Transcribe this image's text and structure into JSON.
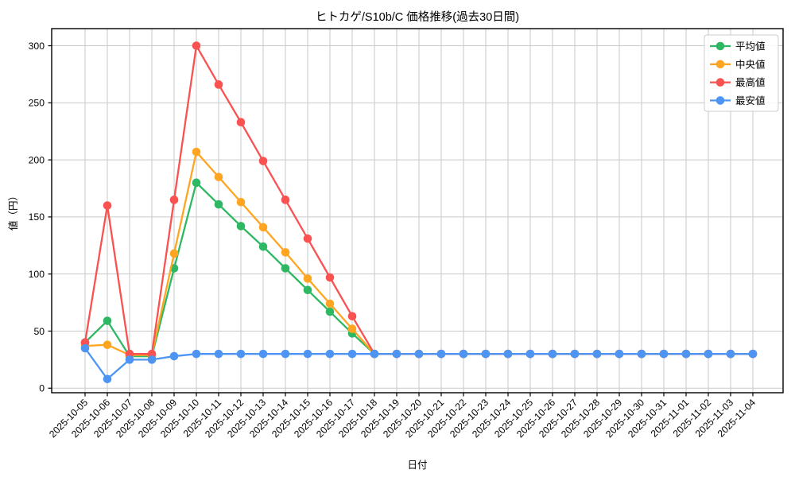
{
  "chart_data": {
    "type": "line",
    "title": "ヒトカゲ/S10b/C 価格推移(過去30日間)",
    "xlabel": "日付",
    "ylabel": "値（円）",
    "x": [
      "2025-10-05",
      "2025-10-06",
      "2025-10-07",
      "2025-10-08",
      "2025-10-09",
      "2025-10-10",
      "2025-10-11",
      "2025-10-12",
      "2025-10-13",
      "2025-10-14",
      "2025-10-15",
      "2025-10-16",
      "2025-10-17",
      "2025-10-18",
      "2025-10-19",
      "2025-10-20",
      "2025-10-21",
      "2025-10-22",
      "2025-10-23",
      "2025-10-24",
      "2025-10-25",
      "2025-10-26",
      "2025-10-27",
      "2025-10-28",
      "2025-10-29",
      "2025-10-30",
      "2025-10-31",
      "2025-11-01",
      "2025-11-02",
      "2025-11-03",
      "2025-11-04"
    ],
    "series": [
      {
        "name": "平均値",
        "color": "#2eb863",
        "values": [
          40,
          59,
          28,
          28,
          105,
          180,
          161,
          142,
          124,
          105,
          86,
          67,
          48,
          30,
          30,
          30,
          30,
          30,
          30,
          30,
          30,
          30,
          30,
          30,
          30,
          30,
          30,
          30,
          30,
          30,
          30
        ]
      },
      {
        "name": "中央値",
        "color": "#ffa522",
        "values": [
          37,
          38,
          29,
          29,
          118,
          207,
          185,
          163,
          141,
          119,
          96,
          74,
          52,
          30,
          30,
          30,
          30,
          30,
          30,
          30,
          30,
          30,
          30,
          30,
          30,
          30,
          30,
          30,
          30,
          30,
          30
        ]
      },
      {
        "name": "最高値",
        "color": "#fa5151",
        "values": [
          40,
          160,
          30,
          30,
          165,
          300,
          266,
          233,
          199,
          165,
          131,
          97,
          63,
          30,
          30,
          30,
          30,
          30,
          30,
          30,
          30,
          30,
          30,
          30,
          30,
          30,
          30,
          30,
          30,
          30,
          30
        ]
      },
      {
        "name": "最安値",
        "color": "#4e94f3",
        "values": [
          35,
          8,
          25,
          25,
          28,
          30,
          30,
          30,
          30,
          30,
          30,
          30,
          30,
          30,
          30,
          30,
          30,
          30,
          30,
          30,
          30,
          30,
          30,
          30,
          30,
          30,
          30,
          30,
          30,
          30,
          30
        ]
      }
    ],
    "yticks": [
      0,
      50,
      100,
      150,
      200,
      250,
      300
    ],
    "ylim": [
      -4,
      315
    ],
    "grid": true,
    "grid_color": "#c9c9c9",
    "legend_position": "upper right",
    "legend_labels": [
      "平均値",
      "中央値",
      "最高値",
      "最安値"
    ]
  }
}
